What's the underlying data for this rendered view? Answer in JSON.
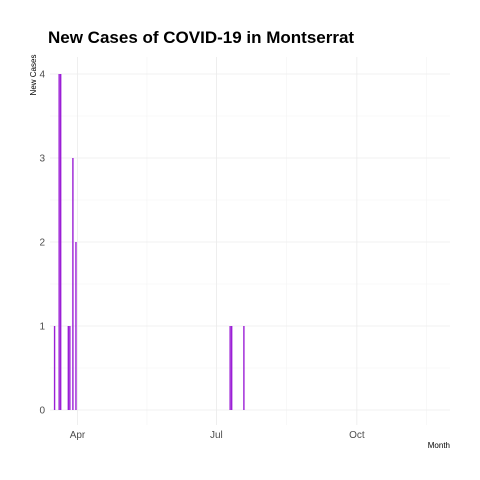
{
  "chart_data": {
    "type": "bar",
    "title": "New Cases of COVID-19 in Montserrat",
    "xlabel": "Month",
    "ylabel": "New Cases",
    "x_tick_labels": [
      "Apr",
      "Jul",
      "Oct"
    ],
    "x_tick_dates": [
      "2020-04-01",
      "2020-07-01",
      "2020-10-01"
    ],
    "y_ticks": [
      0,
      1,
      2,
      3,
      4
    ],
    "ylim": [
      0,
      4
    ],
    "xlim": [
      "2020-03-14",
      "2020-12-01"
    ],
    "grid": true,
    "bar_color": "#9b1fd6",
    "dates": [
      "2020-03-17",
      "2020-03-20",
      "2020-03-21",
      "2020-03-26",
      "2020-03-27",
      "2020-03-29",
      "2020-03-31",
      "2020-07-10",
      "2020-07-11",
      "2020-07-19"
    ],
    "values": [
      1,
      4,
      4,
      1,
      1,
      3,
      2,
      1,
      1,
      1
    ]
  }
}
